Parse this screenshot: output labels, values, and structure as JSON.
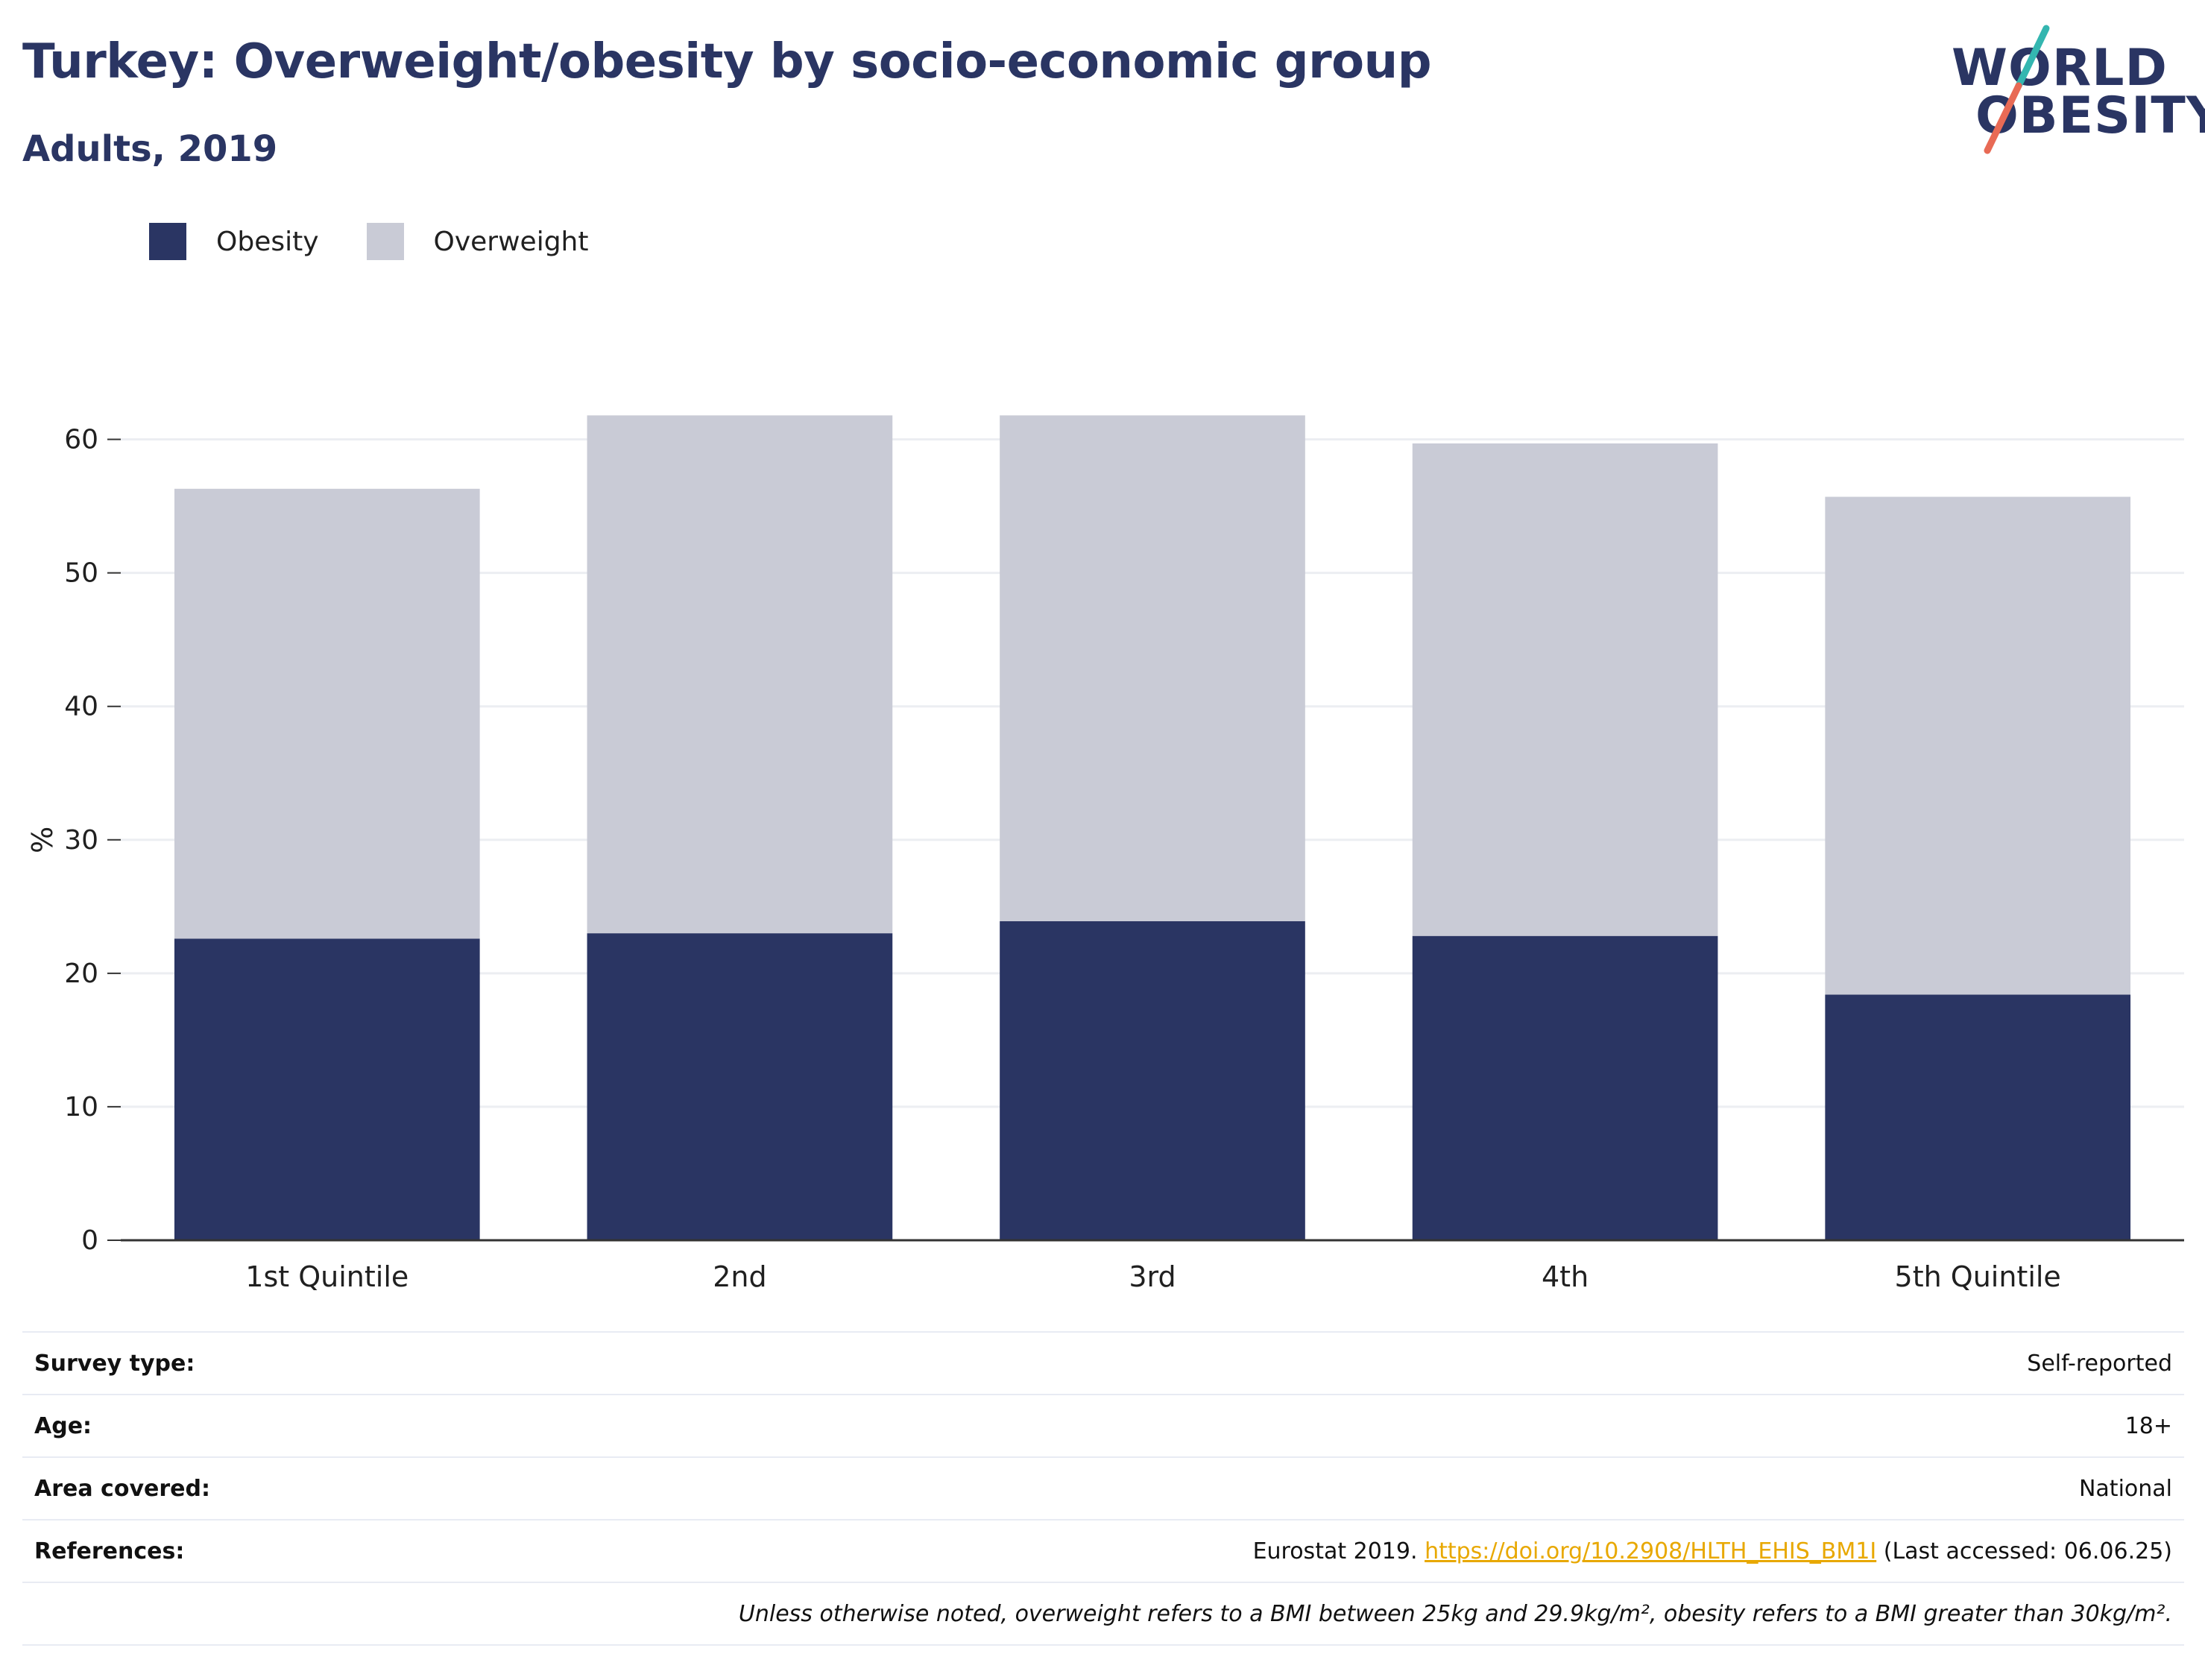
{
  "header": {
    "title": "Turkey: Overweight/obesity by socio-economic group",
    "subtitle": "Adults, 2019"
  },
  "logo": {
    "line1": "WORLD",
    "line2": "OBESITY"
  },
  "colors": {
    "obesity": "#2a3563",
    "overweight": "#c9cbd6",
    "title": "#2a3563",
    "link": "#e8a800",
    "logo_teal": "#34b6b0",
    "logo_coral": "#e86a55"
  },
  "chart_data": {
    "type": "bar",
    "stacked": true,
    "categories": [
      "1st Quintile",
      "2nd",
      "3rd",
      "4th",
      "5th Quintile"
    ],
    "series": [
      {
        "name": "Obesity",
        "values": [
          22.6,
          23.0,
          23.9,
          22.8,
          18.4
        ]
      },
      {
        "name": "Overweight",
        "values": [
          33.7,
          38.8,
          37.9,
          36.9,
          37.3
        ]
      }
    ],
    "ylabel": "%",
    "xlabel": "",
    "ylim": [
      0,
      65
    ],
    "yticks": [
      0,
      10,
      20,
      30,
      40,
      50,
      60
    ],
    "grid": true,
    "legend": "top-left"
  },
  "footer": {
    "rows": [
      {
        "label": "Survey type:",
        "value": "Self-reported"
      },
      {
        "label": "Age:",
        "value": "18+"
      },
      {
        "label": "Area covered:",
        "value": "National"
      }
    ],
    "references": {
      "label": "References:",
      "prefix": "Eurostat 2019.",
      "link": "https://doi.org/10.2908/HLTH_EHIS_BM1I",
      "suffix": "(Last accessed: 06.06.25)"
    },
    "note": "Unless otherwise noted, overweight refers to a BMI between 25kg and 29.9kg/m², obesity refers to a BMI greater than 30kg/m²."
  }
}
